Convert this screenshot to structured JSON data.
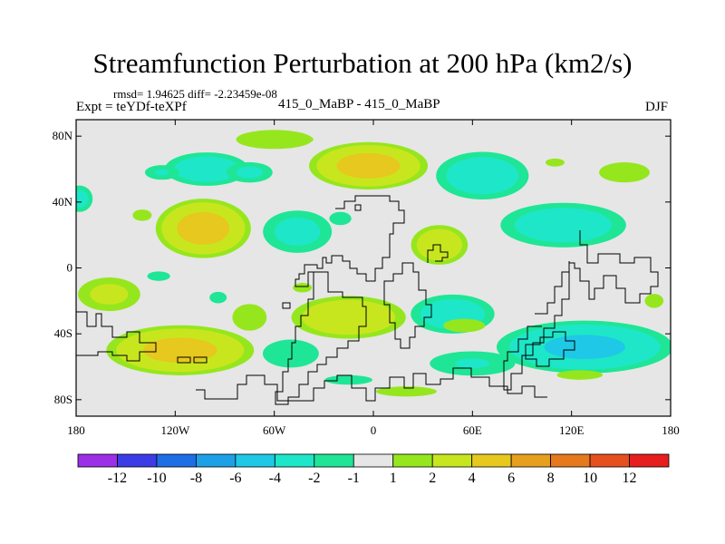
{
  "title": "Streamfunction Perturbation at 200 hPa (km2/s)",
  "stats": "rmsd= 1.94625 diff= -2.23459e-08",
  "expt": "Expt = teYDf-teXPf",
  "models": "415_0_MaBP - 415_0_MaBP",
  "season": "DJF",
  "map_data": {
    "projection": "cylindrical equidistant",
    "lon_range": [
      -180,
      180
    ],
    "lat_range": [
      -90,
      90
    ],
    "lat_ticks": [
      {
        "value": 80,
        "label": "80N"
      },
      {
        "value": 40,
        "label": "40N"
      },
      {
        "value": 0,
        "label": "0"
      },
      {
        "value": -40,
        "label": "40S"
      },
      {
        "value": -80,
        "label": "80S"
      }
    ],
    "lon_ticks": [
      {
        "value": -180,
        "label": "180"
      },
      {
        "value": -120,
        "label": "120W"
      },
      {
        "value": -60,
        "label": "60W"
      },
      {
        "value": 0,
        "label": "0"
      },
      {
        "value": 60,
        "label": "60E"
      },
      {
        "value": 120,
        "label": "120E"
      },
      {
        "value": 180,
        "label": "180"
      }
    ],
    "missing_color": "#e6e6e6",
    "colorbar": {
      "colors": [
        "#9b30e6",
        "#3c3ce6",
        "#1e6ee6",
        "#1ea0e6",
        "#1ec8e6",
        "#1ee6c8",
        "#1ee696",
        "#e6e6e6",
        "#96e61e",
        "#c8e61e",
        "#e6c81e",
        "#e6a01e",
        "#e6781e",
        "#e6501e",
        "#e61e1e"
      ],
      "labels": [
        "-12",
        "-10",
        "-8",
        "-6",
        "-4",
        "-2",
        "-1",
        "1",
        "2",
        "4",
        "6",
        "8",
        "10",
        "12"
      ]
    },
    "anomalies": [
      {
        "lon": -60,
        "lat": 78,
        "rx": 40,
        "ry": 10,
        "value": 1.5
      },
      {
        "lon": -45,
        "lat": 78,
        "rx": 15,
        "ry": 5,
        "value": 1.5
      },
      {
        "lon": -3,
        "lat": 62,
        "rx": 40,
        "ry": 16,
        "value": 5.2
      },
      {
        "lon": -101,
        "lat": 60,
        "rx": 30,
        "ry": 12,
        "value": -3.5
      },
      {
        "lon": -75,
        "lat": 58,
        "rx": 18,
        "ry": 8,
        "value": -2.5
      },
      {
        "lon": -128,
        "lat": 58,
        "rx": 14,
        "ry": 6,
        "value": -2.2
      },
      {
        "lon": -178,
        "lat": 42,
        "rx": 10,
        "ry": 10,
        "value": -2.8
      },
      {
        "lon": 66,
        "lat": 56,
        "rx": 33,
        "ry": 17,
        "value": -3.6
      },
      {
        "lon": 152,
        "lat": 58,
        "rx": 25,
        "ry": 10,
        "value": 1.6
      },
      {
        "lon": 110,
        "lat": 64,
        "rx": 12,
        "ry": 5,
        "value": 1.3
      },
      {
        "lon": -103,
        "lat": 24,
        "rx": 32,
        "ry": 20,
        "value": 5.3
      },
      {
        "lon": -140,
        "lat": 32,
        "rx": 10,
        "ry": 6,
        "value": 1.5
      },
      {
        "lon": -46,
        "lat": 22,
        "rx": 26,
        "ry": 16,
        "value": -2.8
      },
      {
        "lon": -20,
        "lat": 30,
        "rx": 10,
        "ry": 6,
        "value": -1.8
      },
      {
        "lon": 40,
        "lat": 14,
        "rx": 20,
        "ry": 14,
        "value": 3.8
      },
      {
        "lon": 115,
        "lat": 26,
        "rx": 45,
        "ry": 16,
        "value": -3.5
      },
      {
        "lon": -160,
        "lat": -16,
        "rx": 24,
        "ry": 13,
        "value": 2.6
      },
      {
        "lon": -130,
        "lat": -5,
        "rx": 12,
        "ry": 5,
        "value": -1.5
      },
      {
        "lon": -94,
        "lat": -18,
        "rx": 9,
        "ry": 6,
        "value": -1.5
      },
      {
        "lon": -43,
        "lat": -12,
        "rx": 10,
        "ry": 5,
        "value": 1.5
      },
      {
        "lon": -15,
        "lat": -30,
        "rx": 40,
        "ry": 15,
        "value": 4.0
      },
      {
        "lon": 48,
        "lat": -28,
        "rx": 30,
        "ry": 14,
        "value": -3.5
      },
      {
        "lon": 55,
        "lat": -35,
        "rx": 22,
        "ry": 7,
        "value": 1.5
      },
      {
        "lon": -50,
        "lat": -52,
        "rx": 24,
        "ry": 12,
        "value": -2.0
      },
      {
        "lon": -117,
        "lat": -50,
        "rx": 50,
        "ry": 17,
        "value": 5.0
      },
      {
        "lon": -75,
        "lat": -30,
        "rx": 18,
        "ry": 14,
        "value": 1.5
      },
      {
        "lon": 128,
        "lat": -48,
        "rx": 60,
        "ry": 18,
        "value": -4.8
      },
      {
        "lon": 60,
        "lat": -58,
        "rx": 35,
        "ry": 10,
        "value": -2.2
      },
      {
        "lon": 20,
        "lat": -75,
        "rx": 30,
        "ry": 5,
        "value": 1.6
      },
      {
        "lon": -15,
        "lat": -68,
        "rx": 25,
        "ry": 5,
        "value": -1.5
      },
      {
        "lon": 125,
        "lat": -65,
        "rx": 24,
        "ry": 5,
        "value": 1.5
      },
      {
        "lon": 170,
        "lat": -20,
        "rx": 8,
        "ry": 6,
        "value": 2.0
      }
    ]
  }
}
